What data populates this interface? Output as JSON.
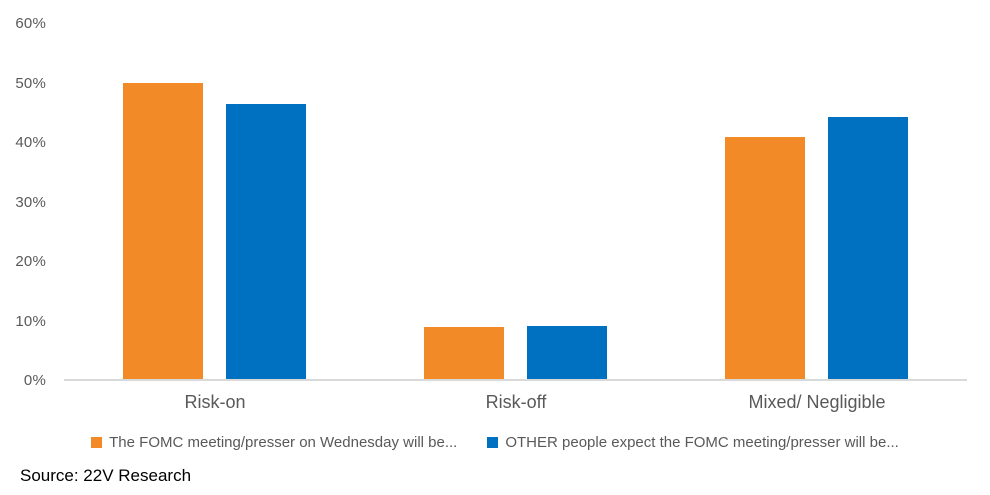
{
  "chart_data": {
    "type": "bar",
    "title": "",
    "categories": [
      "Risk-on",
      "Risk-off",
      "Mixed/ Negligible"
    ],
    "series": [
      {
        "name": "The FOMC meeting/presser on Wednesday will be...",
        "color": "#F28A28",
        "values": [
          50.0,
          9.0,
          41.0
        ]
      },
      {
        "name": "OTHER people expect the FOMC meeting/presser will be...",
        "color": "#0070C0",
        "values": [
          46.5,
          9.3,
          44.3
        ]
      }
    ],
    "xlabel": "",
    "ylabel": "",
    "ylim": [
      0,
      60
    ],
    "y_tick_step": 10,
    "y_tick_labels": [
      "0%",
      "10%",
      "20%",
      "30%",
      "40%",
      "50%",
      "60%"
    ],
    "grid": false,
    "legend_position": "bottom"
  },
  "colors": {
    "axis_text": "#595959",
    "category_text": "#595959",
    "legend_text": "#595959",
    "baseline": "#D9D9D9",
    "background": "#FFFFFF",
    "source_text": "#000000"
  },
  "footer": {
    "source_note": "Source: 22V Research"
  }
}
